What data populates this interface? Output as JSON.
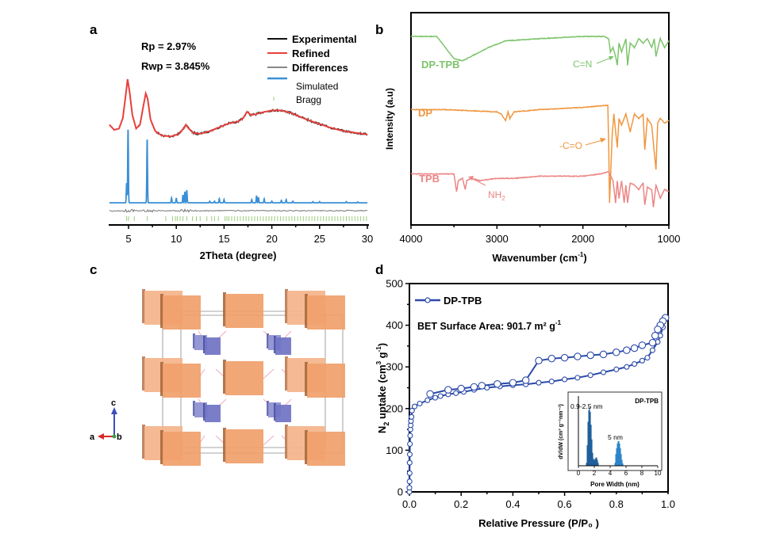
{
  "figure": {
    "panels": [
      "a",
      "b",
      "c",
      "d"
    ]
  },
  "chart_data": [
    {
      "panel": "a",
      "type": "line",
      "title": "",
      "xlabel": "2Theta (degree)",
      "ylabel": "",
      "xlim": [
        3,
        30
      ],
      "xticks": [
        5,
        10,
        15,
        20,
        25,
        30
      ],
      "annotations": [
        "Rp = 2.97%",
        "Rwp = 3.845%"
      ],
      "legend": {
        "placement": "top-right",
        "entries": [
          {
            "name": "Experimental",
            "color": "#111111"
          },
          {
            "name": "Refined",
            "color": "#e8403c"
          },
          {
            "name": "Differences",
            "color": "#888888"
          },
          {
            "name": "Simulated",
            "color": "#3a8fd6"
          },
          {
            "name": "Bragg",
            "color": "#9ccc7a"
          }
        ]
      },
      "series": [
        {
          "name": "Refined",
          "x": [
            3.0,
            3.5,
            4.0,
            4.4,
            4.7,
            4.9,
            5.1,
            5.4,
            5.8,
            6.2,
            6.5,
            6.8,
            7.0,
            7.3,
            7.8,
            8.5,
            9.5,
            10.3,
            10.8,
            11.0,
            11.3,
            11.8,
            12.5,
            13.5,
            14.5,
            15.5,
            16.5,
            17.0,
            17.4,
            17.8,
            18.3,
            19.0,
            20.0,
            21.0,
            22.0,
            23.0,
            24.0,
            25.0,
            26.0,
            27.0,
            28.0,
            29.0,
            30.0
          ],
          "y": [
            0.3,
            0.22,
            0.24,
            0.4,
            0.75,
            1.0,
            0.82,
            0.45,
            0.24,
            0.3,
            0.55,
            0.78,
            0.7,
            0.38,
            0.2,
            0.13,
            0.12,
            0.16,
            0.25,
            0.3,
            0.24,
            0.17,
            0.16,
            0.2,
            0.26,
            0.32,
            0.35,
            0.4,
            0.5,
            0.45,
            0.46,
            0.49,
            0.52,
            0.52,
            0.48,
            0.42,
            0.36,
            0.31,
            0.26,
            0.22,
            0.19,
            0.17,
            0.15
          ]
        },
        {
          "name": "Simulated",
          "peaks": [
            {
              "x": 4.8,
              "h": 0.25
            },
            {
              "x": 4.95,
              "h": 0.95
            },
            {
              "x": 6.95,
              "h": 0.82
            },
            {
              "x": 9.5,
              "h": 0.06
            },
            {
              "x": 10.0,
              "h": 0.06
            },
            {
              "x": 10.7,
              "h": 0.1
            },
            {
              "x": 10.9,
              "h": 0.14
            },
            {
              "x": 11.1,
              "h": 0.16
            },
            {
              "x": 13.5,
              "h": 0.02
            },
            {
              "x": 14.0,
              "h": 0.02
            },
            {
              "x": 14.5,
              "h": 0.05
            },
            {
              "x": 15.0,
              "h": 0.04
            },
            {
              "x": 17.9,
              "h": 0.04
            },
            {
              "x": 18.4,
              "h": 0.09
            },
            {
              "x": 18.6,
              "h": 0.07
            },
            {
              "x": 19.2,
              "h": 0.05
            },
            {
              "x": 20.0,
              "h": 0.02
            },
            {
              "x": 21.0,
              "h": 0.03
            },
            {
              "x": 21.5,
              "h": 0.04
            },
            {
              "x": 22.2,
              "h": 0.02
            },
            {
              "x": 24.3,
              "h": 0.015
            },
            {
              "x": 25.0,
              "h": 0.015
            },
            {
              "x": 27.8,
              "h": 0.015
            },
            {
              "x": 29.0,
              "h": 0.01
            }
          ]
        },
        {
          "name": "Bragg",
          "positions": [
            4.8,
            5.0,
            5.6,
            6.95,
            8.9,
            9.6,
            9.9,
            10.1,
            10.4,
            10.7,
            11.1,
            11.7,
            12.1,
            12.5,
            13.2,
            13.7,
            14.0,
            14.4,
            15.1,
            15.3,
            15.5,
            15.8,
            16.1,
            16.4,
            16.7,
            17.0,
            17.3,
            17.6,
            17.9,
            18.2,
            18.5,
            18.8,
            19.1,
            19.4,
            19.7,
            20.0,
            20.3,
            20.6,
            20.9,
            21.2,
            21.5,
            21.8,
            22.1,
            22.4,
            22.7,
            23.0,
            23.3,
            23.6,
            23.9,
            24.2,
            24.5,
            24.8,
            25.1,
            25.4,
            25.7,
            26.0,
            26.3,
            26.6,
            26.9,
            27.2,
            27.5,
            27.8,
            28.1,
            28.4,
            28.7,
            29.0,
            29.3,
            29.6,
            29.9
          ]
        }
      ]
    },
    {
      "panel": "b",
      "type": "line",
      "title": "",
      "xlabel": "Wavenumber (cm⁻¹)",
      "ylabel": "Intensity (a.u)",
      "xlim": [
        4000,
        1000
      ],
      "xticks": [
        4000,
        3000,
        2000,
        1000
      ],
      "series": [
        {
          "name": "DP-TPB",
          "color": "#7dc46b",
          "x": [
            4000,
            3700,
            3600,
            3500,
            3400,
            3300,
            3100,
            2900,
            2500,
            2000,
            1750,
            1700,
            1680,
            1650,
            1620,
            1600,
            1580,
            1550,
            1500,
            1480,
            1450,
            1400,
            1350,
            1300,
            1250,
            1200,
            1170,
            1150,
            1100,
            1050,
            1000
          ],
          "y": [
            0.85,
            0.85,
            0.8,
            0.75,
            0.74,
            0.76,
            0.8,
            0.83,
            0.84,
            0.85,
            0.85,
            0.84,
            0.78,
            0.8,
            0.76,
            0.72,
            0.82,
            0.78,
            0.84,
            0.72,
            0.82,
            0.8,
            0.84,
            0.82,
            0.84,
            0.8,
            0.84,
            0.76,
            0.84,
            0.8,
            0.83
          ]
        },
        {
          "name": "DP",
          "color": "#f0963e",
          "x": [
            4000,
            3600,
            3000,
            2950,
            2900,
            2870,
            2850,
            2800,
            2500,
            2000,
            1710,
            1700,
            1690,
            1660,
            1640,
            1600,
            1580,
            1550,
            1500,
            1450,
            1400,
            1350,
            1300,
            1280,
            1250,
            1200,
            1150,
            1130,
            1100,
            1050,
            1000
          ],
          "y": [
            0.52,
            0.52,
            0.51,
            0.5,
            0.47,
            0.51,
            0.48,
            0.51,
            0.52,
            0.53,
            0.54,
            0.36,
            0.1,
            0.4,
            0.5,
            0.35,
            0.48,
            0.45,
            0.5,
            0.42,
            0.5,
            0.48,
            0.5,
            0.34,
            0.48,
            0.45,
            0.25,
            0.46,
            0.48,
            0.46,
            0.47
          ]
        },
        {
          "name": "TPB",
          "color": "#ec8585",
          "x": [
            4000,
            3500,
            3470,
            3450,
            3400,
            3370,
            3350,
            3300,
            3200,
            3000,
            2800,
            2500,
            2000,
            1800,
            1700,
            1650,
            1620,
            1600,
            1580,
            1550,
            1520,
            1500,
            1480,
            1450,
            1400,
            1350,
            1300,
            1280,
            1250,
            1200,
            1180,
            1150,
            1100,
            1050,
            1000
          ],
          "y": [
            0.23,
            0.23,
            0.15,
            0.2,
            0.21,
            0.16,
            0.2,
            0.21,
            0.2,
            0.21,
            0.21,
            0.22,
            0.22,
            0.23,
            0.24,
            0.2,
            0.1,
            0.2,
            0.12,
            0.2,
            0.1,
            0.18,
            0.1,
            0.19,
            0.18,
            0.16,
            0.19,
            0.09,
            0.17,
            0.16,
            0.08,
            0.18,
            0.12,
            0.16,
            0.15
          ]
        }
      ],
      "annotations": [
        "C=N",
        "-C=O",
        "NH₂"
      ]
    },
    {
      "panel": "d",
      "type": "line",
      "title": "",
      "xlabel": "Relative Pressure (P/P₀ )",
      "ylabel": "N₂ uptake (cm³ g⁻¹)",
      "xlim": [
        0,
        1.0
      ],
      "ylim": [
        0,
        500
      ],
      "xticks": [
        0.0,
        0.2,
        0.4,
        0.6,
        0.8,
        1.0
      ],
      "yticks": [
        0,
        100,
        200,
        300,
        400,
        500
      ],
      "legend": {
        "placement": "top-left",
        "entries": [
          {
            "name": "DP-TPB",
            "color": "#2b4aa8"
          }
        ]
      },
      "annotations": [
        "BET Surface Area: 901.7 m² g⁻¹"
      ],
      "series": [
        {
          "name": "Adsorption",
          "x": [
            0.0,
            0.0,
            0.0005,
            0.001,
            0.001,
            0.0015,
            0.002,
            0.003,
            0.004,
            0.005,
            0.006,
            0.008,
            0.01,
            0.02,
            0.04,
            0.07,
            0.1,
            0.12,
            0.15,
            0.18,
            0.21,
            0.25,
            0.3,
            0.35,
            0.4,
            0.45,
            0.5,
            0.55,
            0.6,
            0.65,
            0.7,
            0.75,
            0.8,
            0.84,
            0.87,
            0.9,
            0.92,
            0.94,
            0.96,
            0.97,
            0.98,
            0.99
          ],
          "y": [
            0,
            10,
            25,
            45,
            70,
            90,
            115,
            135,
            150,
            160,
            170,
            180,
            195,
            205,
            212,
            220,
            226,
            230,
            234,
            237,
            240,
            245,
            250,
            253,
            256,
            258,
            262,
            265,
            270,
            274,
            280,
            287,
            294,
            300,
            307,
            315,
            322,
            340,
            360,
            375,
            395,
            415
          ]
        },
        {
          "name": "Desorption",
          "x": [
            0.99,
            0.98,
            0.97,
            0.96,
            0.95,
            0.94,
            0.9,
            0.87,
            0.84,
            0.8,
            0.75,
            0.7,
            0.65,
            0.6,
            0.55,
            0.5,
            0.45,
            0.4,
            0.34,
            0.28,
            0.25,
            0.2,
            0.15,
            0.08
          ],
          "y": [
            418,
            410,
            400,
            390,
            375,
            358,
            352,
            345,
            340,
            335,
            330,
            328,
            325,
            322,
            320,
            315,
            268,
            262,
            259,
            255,
            252,
            248,
            245,
            235
          ]
        }
      ],
      "inset": {
        "type": "bar",
        "title": "DP-TPB",
        "xlabel": "Pore Width (nm)",
        "ylabel": "dV/dW (cm³ g⁻¹nm⁻¹)",
        "xlim": [
          0,
          10
        ],
        "xticks": [
          0,
          2,
          4,
          6,
          8,
          10
        ],
        "annotations": [
          "0.9-2.5 nm",
          "5 nm"
        ],
        "bins": [
          {
            "x": 1.0,
            "y": 0.05
          },
          {
            "x": 1.1,
            "y": 0.35
          },
          {
            "x": 1.2,
            "y": 0.75
          },
          {
            "x": 1.3,
            "y": 0.95
          },
          {
            "x": 1.4,
            "y": 1.0
          },
          {
            "x": 1.5,
            "y": 0.92
          },
          {
            "x": 1.6,
            "y": 0.7
          },
          {
            "x": 1.7,
            "y": 0.45
          },
          {
            "x": 1.8,
            "y": 0.22
          },
          {
            "x": 1.9,
            "y": 0.12
          },
          {
            "x": 2.0,
            "y": 0.1
          },
          {
            "x": 2.1,
            "y": 0.12
          },
          {
            "x": 2.2,
            "y": 0.14
          },
          {
            "x": 2.3,
            "y": 0.14
          },
          {
            "x": 2.4,
            "y": 0.1
          },
          {
            "x": 2.5,
            "y": 0.05
          },
          {
            "x": 4.6,
            "y": 0.05
          },
          {
            "x": 4.7,
            "y": 0.2
          },
          {
            "x": 4.8,
            "y": 0.3
          },
          {
            "x": 4.9,
            "y": 0.38
          },
          {
            "x": 5.0,
            "y": 0.42
          },
          {
            "x": 5.1,
            "y": 0.42
          },
          {
            "x": 5.2,
            "y": 0.38
          },
          {
            "x": 5.3,
            "y": 0.3
          },
          {
            "x": 5.4,
            "y": 0.2
          },
          {
            "x": 5.5,
            "y": 0.1
          },
          {
            "x": 5.6,
            "y": 0.04
          }
        ]
      }
    }
  ],
  "structure": {
    "panel": "c",
    "axes_labels": {
      "c": "c",
      "a": "a",
      "b": "b"
    },
    "colors": {
      "large_block": "#f0a06a",
      "small_block": "#6f73c4",
      "link": "#f2a8c0",
      "cell": "#888888"
    }
  },
  "labels": {
    "a": "a",
    "b": "b",
    "c": "c",
    "d": "d",
    "dp_tpb": "DP-TPB",
    "dp": "DP",
    "tpb": "TPB",
    "cn": "C=N",
    "co": "-C=O",
    "nh": "NH",
    "nh_sub": "2",
    "rp": "Rp = 2.97%",
    "rwp": "Rwp = 3.845%",
    "legend_exp": "Experimental",
    "legend_ref": "Refined",
    "legend_diff": "Differences",
    "legend_sim": "Simulated",
    "legend_bragg": "Bragg",
    "a_xlabel": "2Theta (degree)",
    "b_ylabel": "Intensity (a.u)",
    "b_xlabel_main": "Wavenumber (cm",
    "b_xlabel_sup": "-1",
    "b_xlabel_end": ")",
    "d_legend": "DP-TPB",
    "d_bet_main": "BET Surface Area: 901.7 m² g",
    "d_bet_sup": "-1",
    "d_xlabel": "Relative Pressure (P/P₀ )",
    "d_ylabel_n": "N",
    "d_ylabel_sub": "2",
    "d_ylabel_main": " uptake (cm",
    "d_ylabel_sup1": "3",
    "d_ylabel_mid": " g",
    "d_ylabel_sup2": "-1",
    "d_ylabel_end": ")",
    "inset_title": "DP-TPB",
    "inset_peak1": "0.9-2.5 nm",
    "inset_peak2": "5 nm",
    "inset_xlabel": "Pore Width (nm)",
    "inset_ylabel": "dV/dW (cm³ g⁻¹nm⁻¹)"
  }
}
